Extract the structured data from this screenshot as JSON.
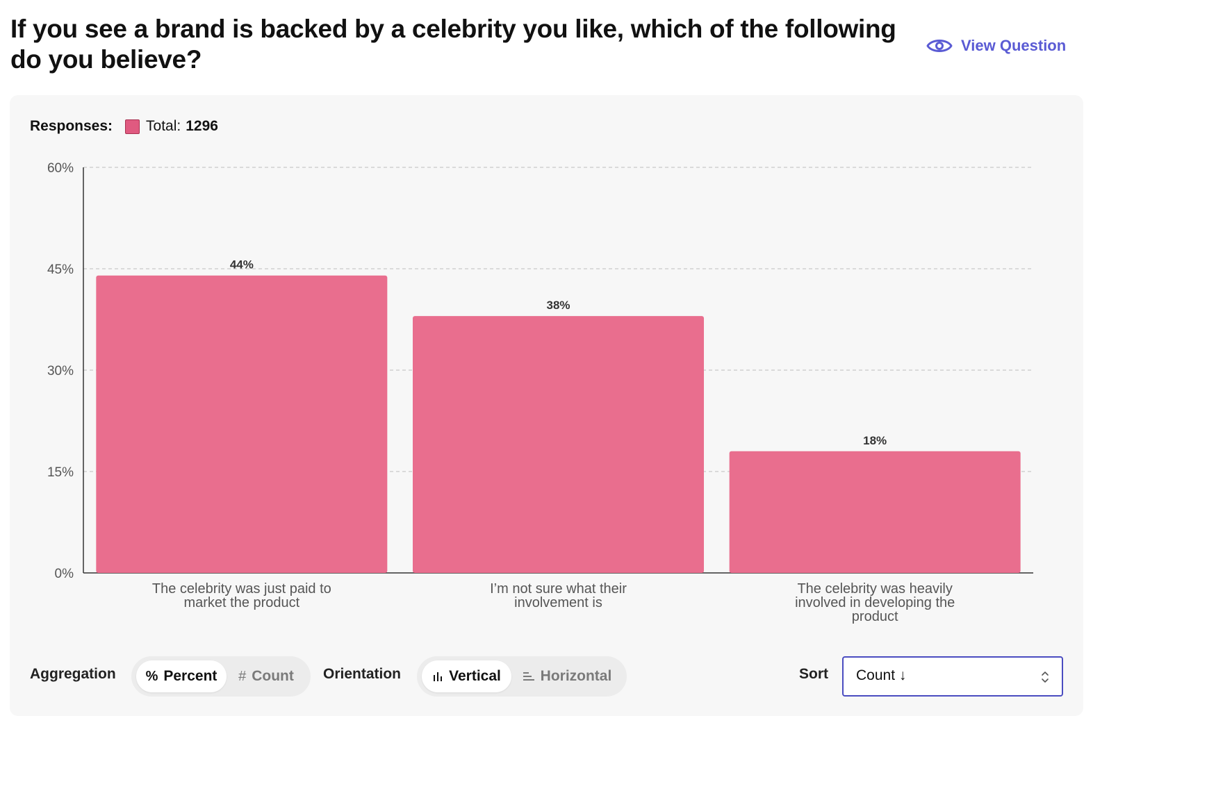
{
  "question": {
    "title": "If you see a brand is backed by a celebrity you like, which of the following do you believe?",
    "view_question_label": "View Question"
  },
  "legend": {
    "responses_label": "Responses:",
    "total_label": "Total:",
    "total_value": "1296",
    "swatch_color": "#e05a80"
  },
  "chart_data": {
    "type": "bar",
    "orientation": "vertical",
    "categories": [
      [
        "The celebrity was just paid to",
        "market the product"
      ],
      [
        "I’m not sure what their",
        "involvement is"
      ],
      [
        "The celebrity was heavily",
        "involved in developing the",
        "product"
      ]
    ],
    "values": [
      44,
      38,
      18
    ],
    "value_labels": [
      "44%",
      "38%",
      "18%"
    ],
    "y_ticks": [
      0,
      15,
      30,
      45,
      60
    ],
    "y_tick_labels": [
      "0%",
      "15%",
      "30%",
      "45%",
      "60%"
    ],
    "ylim": [
      0,
      60
    ],
    "grid": true,
    "bar_color": "#e96e8e"
  },
  "controls": {
    "aggregation": {
      "label": "Aggregation",
      "options": [
        {
          "icon": "percent-icon",
          "label": "Percent",
          "active": true
        },
        {
          "icon": "hash-icon",
          "label": "Count",
          "active": false
        }
      ]
    },
    "orientation": {
      "label": "Orientation",
      "options": [
        {
          "icon": "vertical-bars-icon",
          "label": "Vertical",
          "active": true
        },
        {
          "icon": "horizontal-bars-icon",
          "label": "Horizontal",
          "active": false
        }
      ]
    },
    "sort": {
      "label": "Sort",
      "value": "Count ↓"
    }
  },
  "colors": {
    "accent": "#5a5bd4",
    "bar": "#e96e8e",
    "panel_background": "#f7f7f7"
  }
}
